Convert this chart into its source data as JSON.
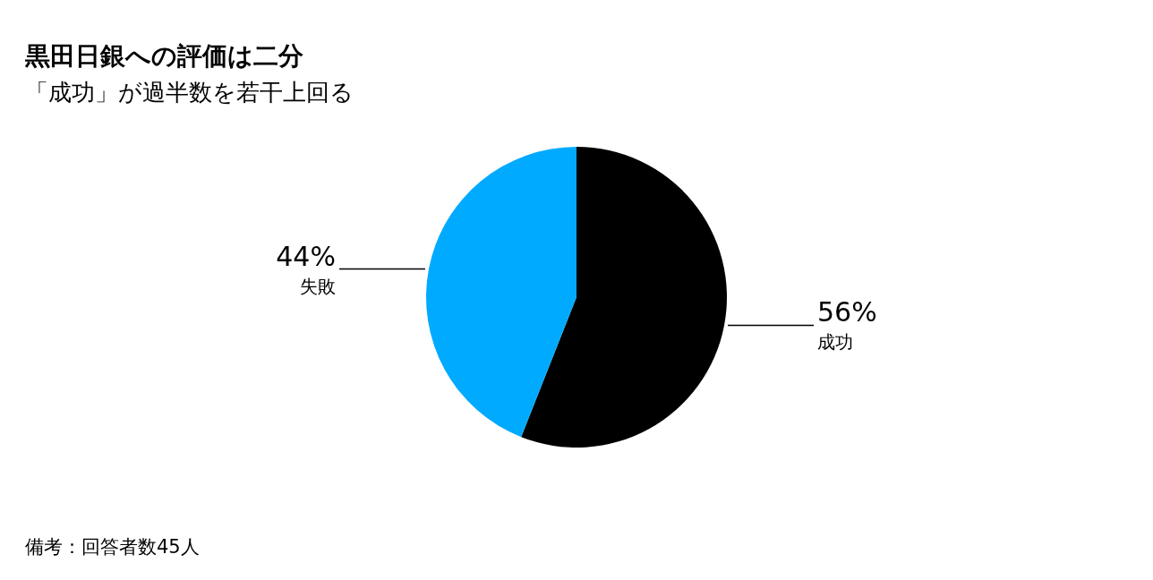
{
  "chart_data": {
    "type": "pie",
    "title": "黒田日銀への評価は二分",
    "subtitle": "「成功」が過半数を若干上回る",
    "categories": [
      "成功",
      "失敗"
    ],
    "values": [
      56,
      44
    ],
    "colors": [
      "#000000",
      "#00aaff"
    ],
    "value_labels": [
      "56%",
      "44%"
    ],
    "annotations": [
      "備考：回答者数45人"
    ]
  }
}
